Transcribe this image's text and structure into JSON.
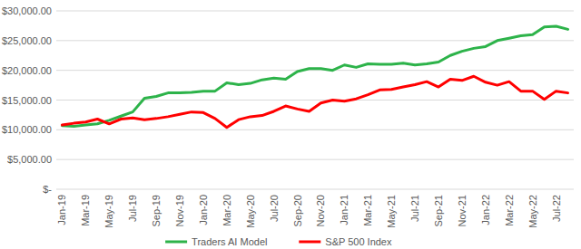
{
  "chart_data": {
    "type": "line",
    "categories": [
      "Jan-19",
      null,
      "Mar-19",
      null,
      "May-19",
      null,
      "Jul-19",
      null,
      "Sep-19",
      null,
      "Nov-19",
      null,
      "Jan-20",
      null,
      "Mar-20",
      null,
      "May-20",
      null,
      "Jul-20",
      null,
      "Sep-20",
      null,
      "Nov-20",
      null,
      "Jan-21",
      null,
      "Mar-21",
      null,
      "May-21",
      null,
      "Jul-21",
      null,
      "Sep-21",
      null,
      "Nov-21",
      null,
      "Jan-22",
      null,
      "Mar-22",
      null,
      "May-22",
      null,
      "Jul-22",
      null
    ],
    "series": [
      {
        "name": "Traders AI Model",
        "color": "#2db34a",
        "values": [
          10700,
          10600,
          10800,
          11000,
          11600,
          12300,
          13000,
          15300,
          15600,
          16200,
          16200,
          16300,
          16500,
          16500,
          17900,
          17600,
          17800,
          18400,
          18700,
          18500,
          19800,
          20300,
          20300,
          20000,
          20900,
          20500,
          21100,
          21000,
          21000,
          21200,
          20900,
          21100,
          21400,
          22500,
          23200,
          23700,
          24000,
          25000,
          25400,
          25800,
          26000,
          27300,
          27400,
          26900
        ]
      },
      {
        "name": "S&P 500 Index",
        "color": "#ff0000",
        "values": [
          10800,
          11100,
          11300,
          11800,
          11000,
          11800,
          12000,
          11700,
          11900,
          12200,
          12600,
          13000,
          12900,
          11900,
          10400,
          11700,
          12200,
          12400,
          13100,
          14000,
          13500,
          13100,
          14500,
          15000,
          14800,
          15200,
          15900,
          16700,
          16800,
          17200,
          17600,
          18100,
          17200,
          18500,
          18300,
          19000,
          18000,
          17500,
          18100,
          16500,
          16500,
          15100,
          16500,
          16200
        ]
      }
    ],
    "ylim": [
      0,
      30000
    ],
    "yticks": [
      {
        "value": 0,
        "label": "$-"
      },
      {
        "value": 5000,
        "label": "$5,000.00"
      },
      {
        "value": 10000,
        "label": "$10,000.00"
      },
      {
        "value": 15000,
        "label": "$15,000.00"
      },
      {
        "value": 20000,
        "label": "$20,000.00"
      },
      {
        "value": 25000,
        "label": "$25,000.00"
      },
      {
        "value": 30000,
        "label": "$30,000.00"
      }
    ],
    "grid": true,
    "legend": "bottom"
  }
}
